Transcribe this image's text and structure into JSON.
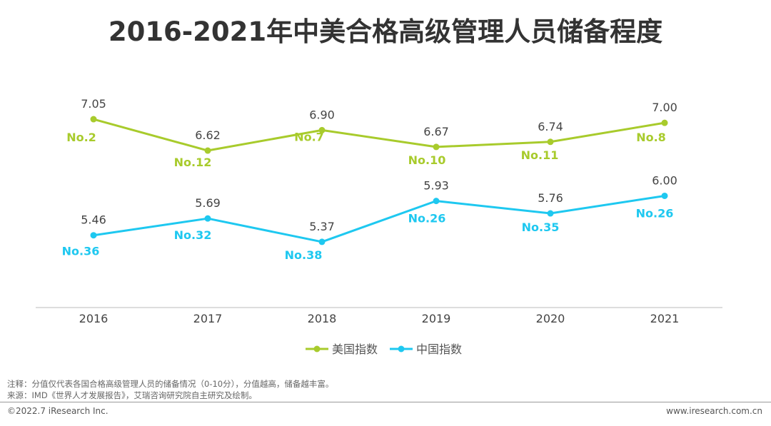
{
  "title": "2016-2021年中美合格高级管理人员储备程度",
  "chart_data": {
    "type": "line",
    "x": [
      "2016",
      "2017",
      "2018",
      "2019",
      "2020",
      "2021"
    ],
    "ylim": [
      4.47,
      7.5
    ],
    "grid": false,
    "legend_position": "bottom",
    "series": [
      {
        "name": "美国指数",
        "color": "#a8cb2c",
        "values": [
          7.05,
          6.62,
          6.9,
          6.67,
          6.74,
          7.0
        ],
        "value_labels": [
          "7.05",
          "6.62",
          "6.90",
          "6.67",
          "6.74",
          "7.00"
        ],
        "rank_labels": [
          "No.2",
          "No.12",
          "No.7",
          "No.10",
          "No.11",
          "No.8"
        ]
      },
      {
        "name": "中国指数",
        "color": "#1ec8f0",
        "values": [
          5.46,
          5.69,
          5.37,
          5.93,
          5.76,
          6.0
        ],
        "value_labels": [
          "5.46",
          "5.69",
          "5.37",
          "5.93",
          "5.76",
          "6.00"
        ],
        "rank_labels": [
          "No.36",
          "No.32",
          "No.38",
          "No.26",
          "No.35",
          "No.26"
        ]
      }
    ]
  },
  "footer": {
    "note": "注释：分值仅代表各国合格高级管理人员的储备情况（0-10分），分值越高，储备越丰富。",
    "source": "来源：IMD《世界人才发展报告》，艾瑞咨询研究院自主研究及绘制。",
    "copyright": "©2022.7 iResearch Inc.",
    "website": "www.iresearch.com.cn"
  }
}
